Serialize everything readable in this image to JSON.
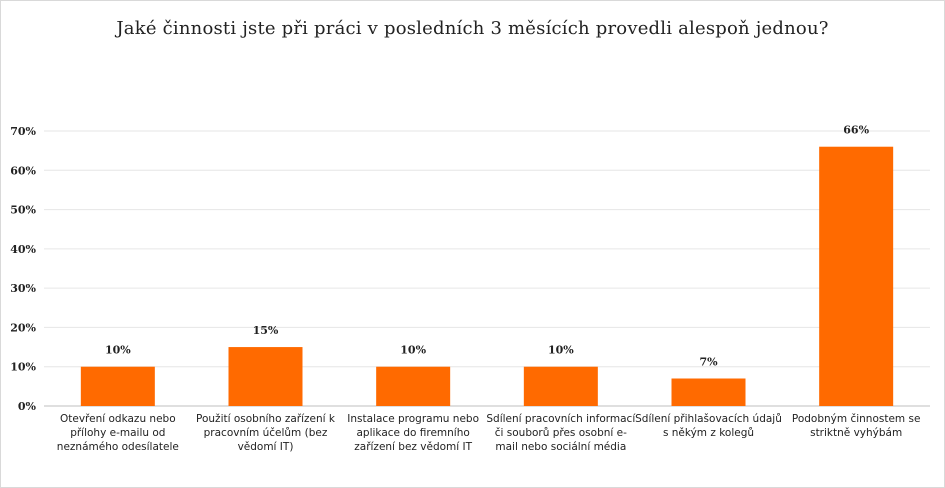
{
  "chart_data": {
    "type": "bar",
    "title": "Jaké činnosti jste při práci v posledních 3 měsících provedli alespoň jednou?",
    "categories": [
      "Otevření odkazu nebo přílohy e-mailu od neznámého odesílatele",
      "Použití osobního zařízení k pracovním účelům (bez vědomí IT)",
      "Instalace programu nebo aplikace do firemního zařízení bez vědomí IT",
      "Sdílení pracovních informací či souborů přes osobní e-mail nebo sociální média",
      "Sdílení přihlašovacích údajů s někým z kolegů",
      "Podobným činnostem se striktně vyhýbám"
    ],
    "values": [
      10,
      15,
      10,
      10,
      7,
      66
    ],
    "data_labels": [
      "10%",
      "15%",
      "10%",
      "10%",
      "7%",
      "66%"
    ],
    "ylim": [
      0,
      70
    ],
    "y_ticks": [
      "0%",
      "10%",
      "20%",
      "30%",
      "40%",
      "50%",
      "60%",
      "70%"
    ],
    "bar_color": "#ff6a00",
    "grid": true,
    "legend": "none"
  }
}
